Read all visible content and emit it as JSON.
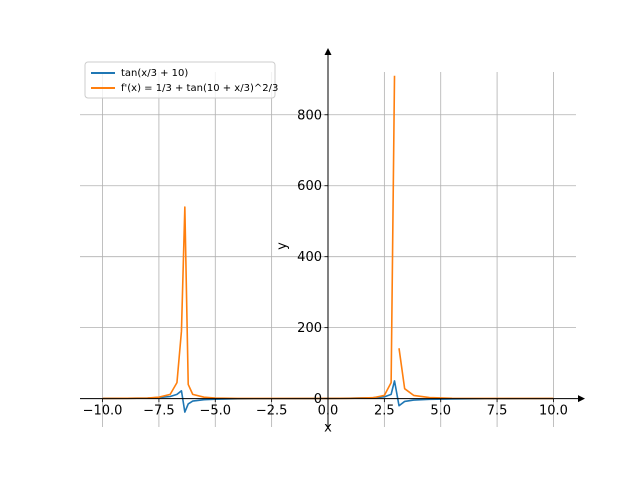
{
  "chart_data": {
    "type": "line",
    "title": "",
    "xlabel": "x",
    "ylabel": "y",
    "xlim": [
      -11,
      11
    ],
    "ylim": [
      -80,
      960
    ],
    "grid": true,
    "legend_placement": "top-left",
    "x_ticks": [
      -10,
      -7.5,
      -5,
      -2.5,
      0,
      2.5,
      5,
      7.5,
      10
    ],
    "x_tick_labels": [
      "−10.0",
      "−7.5",
      "−5.0",
      "−2.5",
      "0.0",
      "2.5",
      "5.0",
      "7.5",
      "10.0"
    ],
    "y_ticks": [
      0,
      200,
      400,
      600,
      800
    ],
    "y_tick_labels": [
      "0",
      "200",
      "400",
      "600",
      "800"
    ],
    "series": [
      {
        "name": "tan(x/3 + 10)",
        "color": "#1f77b4",
        "segments": [
          [
            [
              -10,
              0.5
            ],
            [
              -9,
              0.8
            ],
            [
              -8,
              1.6
            ],
            [
              -7.5,
              3
            ],
            [
              -7,
              6
            ],
            [
              -6.7,
              12
            ],
            [
              -6.5,
              22
            ],
            [
              -6.35,
              -38
            ],
            [
              -6.2,
              -15
            ],
            [
              -6,
              -7
            ],
            [
              -5.5,
              -3
            ],
            [
              -5,
              -1.5
            ],
            [
              -4,
              -0.6
            ],
            [
              -2,
              0
            ],
            [
              0,
              0.6
            ],
            [
              1,
              1.1
            ],
            [
              2,
              2.5
            ],
            [
              2.5,
              5
            ],
            [
              2.8,
              12
            ],
            [
              2.95,
              50
            ],
            [
              3.15,
              -20
            ],
            [
              3.4,
              -8
            ],
            [
              3.8,
              -4
            ],
            [
              4.5,
              -2
            ],
            [
              5.5,
              -1
            ],
            [
              7,
              -0.4
            ],
            [
              8.5,
              0
            ],
            [
              10,
              0.3
            ]
          ]
        ]
      },
      {
        "name": "f'(x) = 1/3 + tan(10 + x/3)^2/3",
        "color": "#ff7f0e",
        "segments": [
          [
            [
              -10,
              0.5
            ],
            [
              -9,
              0.8
            ],
            [
              -8,
              1.6
            ],
            [
              -7.5,
              4
            ],
            [
              -7,
              12
            ],
            [
              -6.7,
              45
            ],
            [
              -6.5,
              190
            ],
            [
              -6.35,
              540
            ],
            [
              -6.2,
              40
            ],
            [
              -6,
              12
            ],
            [
              -5.5,
              4
            ],
            [
              -5,
              1.5
            ],
            [
              -4,
              0.6
            ],
            [
              -2,
              0.4
            ],
            [
              0,
              0.5
            ],
            [
              1,
              0.8
            ],
            [
              2,
              2.5
            ],
            [
              2.5,
              9
            ],
            [
              2.8,
              45
            ],
            [
              2.95,
              910
            ]
          ],
          [
            [
              3.15,
              142
            ],
            [
              3.4,
              28
            ],
            [
              3.8,
              9
            ],
            [
              4.5,
              3
            ],
            [
              5.5,
              1
            ],
            [
              7,
              0.5
            ],
            [
              8.5,
              0.4
            ],
            [
              10,
              0.4
            ]
          ]
        ]
      }
    ]
  }
}
